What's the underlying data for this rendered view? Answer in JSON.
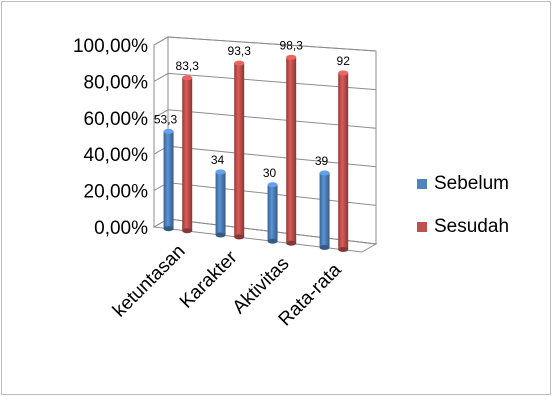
{
  "chart_data": {
    "type": "bar",
    "categories": [
      "ketuntasan",
      "Karakter",
      "Aktivitas",
      "Rata-rata"
    ],
    "series": [
      {
        "name": "Sebelum",
        "values": [
          53.3,
          34,
          30,
          39
        ],
        "labels": [
          "53,3",
          "34",
          "30",
          "39"
        ],
        "color": "#4f81bd"
      },
      {
        "name": "Sesudah",
        "values": [
          83.3,
          93.3,
          98.3,
          92
        ],
        "labels": [
          "83,3",
          "93,3",
          "98,3",
          "92"
        ],
        "color": "#c0504d"
      }
    ],
    "ylim": [
      0,
      100
    ],
    "yticks": [
      "0,00%",
      "20,00%",
      "40,00%",
      "60,00%",
      "80,00%",
      "100,00%"
    ],
    "grid": true,
    "legend_position": "right",
    "title": "",
    "xlabel": "",
    "ylabel": ""
  }
}
